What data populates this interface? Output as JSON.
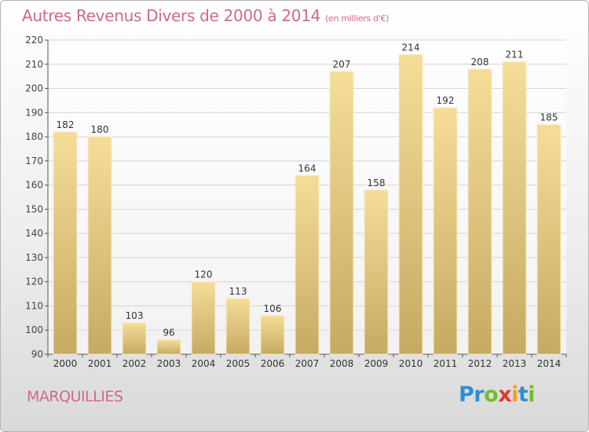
{
  "header": {
    "title": "Autres Revenus Divers de 2000 à 2014",
    "unit": "(en milliers d'€)"
  },
  "footer": {
    "commune": "MARQUILLIES",
    "logo": {
      "letters": [
        "P",
        "r",
        "o",
        "x",
        "i",
        "t",
        "i"
      ],
      "colors": [
        "#2f8fd6",
        "#2f8fd6",
        "#6fbf2a",
        "#e03a2e",
        "#f0a020",
        "#2f8fd6",
        "#6fbf2a"
      ]
    }
  },
  "colors": {
    "bar_top": "#f5dd98",
    "bar_bottom": "#c6aa62",
    "title": "#d06a82",
    "grid": "#d4d4d4"
  },
  "chart_data": {
    "type": "bar",
    "title": "Autres Revenus Divers de 2000 à 2014",
    "subtitle": "(en milliers d'€)",
    "categories": [
      "2000",
      "2001",
      "2002",
      "2003",
      "2004",
      "2005",
      "2006",
      "2007",
      "2008",
      "2009",
      "2010",
      "2011",
      "2012",
      "2013",
      "2014"
    ],
    "values": [
      182,
      180,
      103,
      96,
      120,
      113,
      106,
      164,
      207,
      158,
      214,
      192,
      208,
      211,
      185
    ],
    "ylim": [
      90,
      220
    ],
    "yticks": [
      90,
      100,
      110,
      120,
      130,
      140,
      150,
      160,
      170,
      180,
      190,
      200,
      210,
      220
    ],
    "grid": true,
    "legend": "none"
  }
}
